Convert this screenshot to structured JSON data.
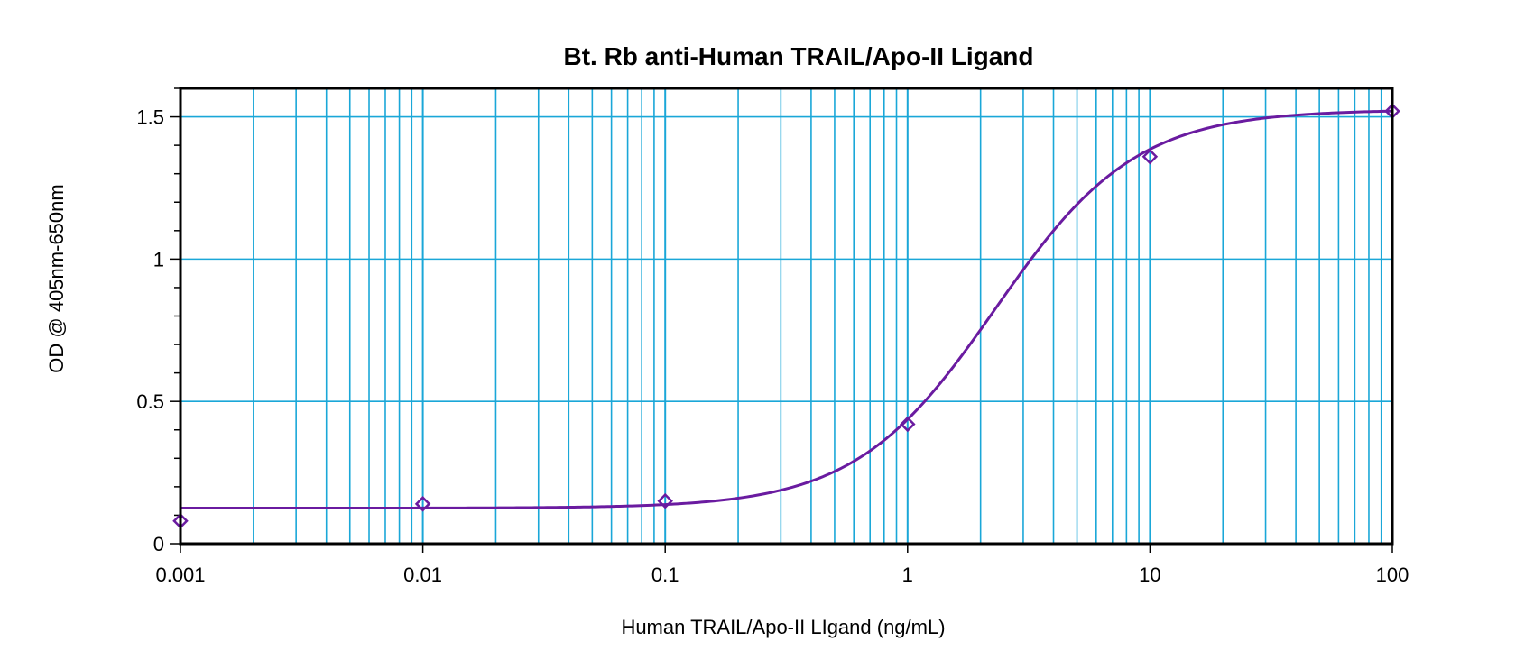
{
  "colors": {
    "grid": "#1aa7d8",
    "curve": "#6a1ba0",
    "marker": "#6a1ba0",
    "frame": "#000000"
  },
  "chart_data": {
    "type": "scatter",
    "title": "Bt. Rb anti-Human TRAIL/Apo-II Ligand",
    "xlabel": "Human TRAIL/Apo-II LIgand (ng/mL)",
    "ylabel": "OD @ 405nm-650nm",
    "x_scale": "log",
    "xlim": [
      0.001,
      100
    ],
    "ylim": [
      0,
      1.6
    ],
    "x_ticks": [
      {
        "value": 0.001,
        "label": "0.001"
      },
      {
        "value": 0.01,
        "label": "0.01"
      },
      {
        "value": 0.1,
        "label": "0.1"
      },
      {
        "value": 1,
        "label": "1"
      },
      {
        "value": 10,
        "label": "10"
      },
      {
        "value": 100,
        "label": "100"
      }
    ],
    "y_ticks": [
      {
        "value": 0,
        "label": "0"
      },
      {
        "value": 0.5,
        "label": "0.5"
      },
      {
        "value": 1,
        "label": "1"
      },
      {
        "value": 1.5,
        "label": "1.5"
      }
    ],
    "grid": true,
    "series": [
      {
        "x": [
          0.001,
          0.01,
          0.1,
          1,
          10,
          100
        ],
        "y": [
          0.08,
          0.14,
          0.15,
          0.42,
          1.36,
          1.52
        ]
      }
    ],
    "fit_curve": {
      "type": "4PL",
      "bottom": 0.125,
      "top": 1.525,
      "ec50": 2.3,
      "hill": 1.5
    }
  }
}
